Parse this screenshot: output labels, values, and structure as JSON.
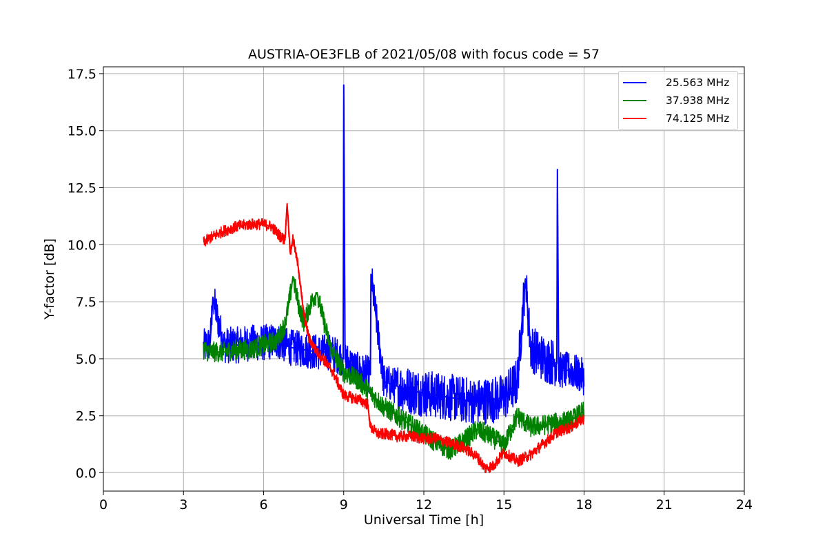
{
  "chart_data": {
    "type": "line",
    "title": "AUSTRIA-OE3FLB of 2021/05/08 with focus code = 57",
    "xlabel": "Universal Time [h]",
    "ylabel": "Y-factor [dB]",
    "xlim": [
      0,
      24
    ],
    "ylim": [
      -0.8,
      17.8
    ],
    "xticks": [
      0,
      3,
      6,
      9,
      12,
      15,
      18,
      21,
      24
    ],
    "xtick_labels": [
      "0",
      "3",
      "6",
      "9",
      "12",
      "15",
      "18",
      "21",
      "24"
    ],
    "yticks": [
      0,
      2.5,
      5,
      7.5,
      10,
      12.5,
      15,
      17.5
    ],
    "ytick_labels": [
      "0.0",
      "2.5",
      "5.0",
      "7.5",
      "10.0",
      "12.5",
      "15.0",
      "17.5"
    ],
    "grid": true,
    "legend_position": "top-right",
    "series": [
      {
        "name": "25.563 MHz",
        "color": "#0000ff",
        "x": [
          3.75,
          4.0,
          4.1,
          4.5,
          5.0,
          5.5,
          6.0,
          6.5,
          7.0,
          7.5,
          8.0,
          8.5,
          8.98,
          9.0,
          9.05,
          9.5,
          10.0,
          10.02,
          10.5,
          11.0,
          11.5,
          12.0,
          12.5,
          13.0,
          13.5,
          14.0,
          14.5,
          15.0,
          15.5,
          15.8,
          16.0,
          16.5,
          16.98,
          17.0,
          17.05,
          17.5,
          18.0
        ],
        "y": [
          5.5,
          5.7,
          7.7,
          5.6,
          5.6,
          5.7,
          5.7,
          5.8,
          5.5,
          5.4,
          5.3,
          5.3,
          5.0,
          17.0,
          5.0,
          4.5,
          4.3,
          8.7,
          4.0,
          3.8,
          3.6,
          3.5,
          3.4,
          3.3,
          3.2,
          3.1,
          3.2,
          3.3,
          4.0,
          8.5,
          5.5,
          5.0,
          4.8,
          13.3,
          4.5,
          4.5,
          4.2
        ]
      },
      {
        "name": "37.938 MHz",
        "color": "#008000",
        "x": [
          3.75,
          4.0,
          4.5,
          5.0,
          5.5,
          6.0,
          6.5,
          6.8,
          7.0,
          7.1,
          7.3,
          7.5,
          7.8,
          8.0,
          8.2,
          8.5,
          9.0,
          9.5,
          10.0,
          10.5,
          11.0,
          11.5,
          12.0,
          12.5,
          13.0,
          13.5,
          14.0,
          14.5,
          15.0,
          15.5,
          16.0,
          16.5,
          17.0,
          17.5,
          18.0
        ],
        "y": [
          5.4,
          5.3,
          5.3,
          5.4,
          5.4,
          5.6,
          5.8,
          6.5,
          7.8,
          8.6,
          7.4,
          6.6,
          7.5,
          7.9,
          6.9,
          5.5,
          4.4,
          4.1,
          3.5,
          2.9,
          2.5,
          2.1,
          1.7,
          1.3,
          1.0,
          1.4,
          1.9,
          1.6,
          1.2,
          2.5,
          2.0,
          2.1,
          2.2,
          2.3,
          2.7
        ]
      },
      {
        "name": "74.125 MHz",
        "color": "#ff0000",
        "x": [
          3.75,
          4.0,
          4.5,
          5.0,
          5.5,
          6.0,
          6.3,
          6.6,
          6.8,
          6.88,
          7.0,
          7.1,
          7.3,
          7.5,
          7.7,
          8.0,
          8.3,
          8.6,
          9.0,
          9.3,
          9.6,
          9.9,
          10.0,
          10.3,
          10.7,
          11.0,
          11.5,
          12.0,
          12.5,
          13.0,
          13.5,
          14.0,
          14.3,
          14.6,
          15.0,
          15.5,
          16.0,
          16.5,
          17.0,
          17.5,
          18.0
        ],
        "y": [
          10.1,
          10.3,
          10.6,
          10.8,
          10.9,
          10.9,
          10.8,
          10.4,
          10.2,
          11.8,
          9.6,
          10.3,
          9.0,
          7.0,
          5.9,
          5.3,
          4.9,
          4.4,
          3.4,
          3.3,
          3.2,
          3.0,
          2.0,
          1.7,
          1.7,
          1.6,
          1.6,
          1.5,
          1.5,
          1.3,
          1.1,
          0.7,
          0.2,
          0.3,
          0.9,
          0.5,
          0.8,
          1.3,
          1.8,
          2.0,
          2.4
        ]
      }
    ]
  }
}
